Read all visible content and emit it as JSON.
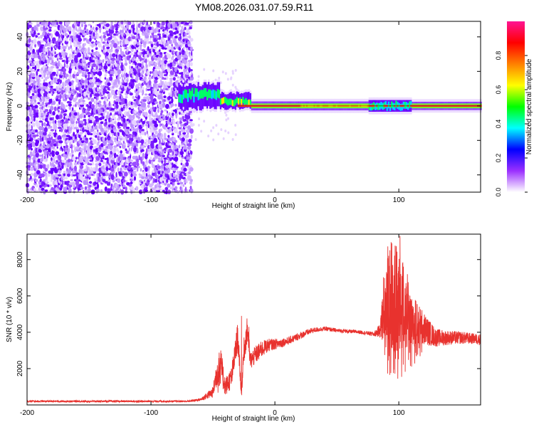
{
  "title": "YM08.2026.031.07.59.R11",
  "chart_data": [
    {
      "type": "heatmap",
      "xlabel": "Height of straight line (km)",
      "ylabel": "Frequency (Hz)",
      "xlim": [
        -200,
        166
      ],
      "ylim": [
        -50,
        49
      ],
      "xticks": [
        -200,
        -100,
        0,
        100
      ],
      "yticks": [
        -40,
        -20,
        0,
        20,
        40
      ],
      "noise_region_km": [
        -200,
        -67
      ],
      "signal_center_freq_hz": 0,
      "colorbar": {
        "label": "Normalized spectral amplitude",
        "range": [
          0.0,
          1.0
        ],
        "ticks": [
          "0.0",
          "0.2",
          "0.4",
          "0.6",
          "0.8"
        ],
        "colors": [
          "#ffffff",
          "#9b30ff",
          "#0000ff",
          "#00ffff",
          "#00ff00",
          "#ffff00",
          "#ff8000",
          "#ff0000",
          "#ff1493"
        ]
      }
    },
    {
      "type": "line",
      "xlabel": "Height of straight line (km)",
      "ylabel": "SNR (10 * v/v)",
      "xlim": [
        -200,
        166
      ],
      "ylim": [
        0,
        9400
      ],
      "xticks": [
        -200,
        -100,
        0,
        100
      ],
      "yticks": [
        2000,
        4000,
        6000,
        8000
      ],
      "color": "#e8322e",
      "envelope": {
        "x": [
          -200,
          -70,
          -60,
          -50,
          -45,
          -40,
          -35,
          -30,
          -27,
          -25,
          -22,
          -20,
          -15,
          -10,
          -5,
          0,
          10,
          20,
          30,
          40,
          50,
          60,
          70,
          80,
          85,
          88,
          92,
          96,
          100,
          104,
          108,
          112,
          120,
          130,
          140,
          150,
          160,
          166
        ],
        "y": [
          200,
          200,
          300,
          700,
          2500,
          1000,
          1500,
          3800,
          600,
          3000,
          4200,
          2400,
          2800,
          3100,
          3300,
          3350,
          3500,
          3800,
          4100,
          4200,
          4100,
          4050,
          4000,
          3900,
          4100,
          5500,
          6300,
          5800,
          5700,
          5500,
          5000,
          4600,
          4200,
          3700,
          3700,
          3700,
          3650,
          3600
        ],
        "amplitude": [
          50,
          50,
          80,
          300,
          1200,
          500,
          600,
          800,
          300,
          700,
          800,
          500,
          500,
          450,
          350,
          300,
          220,
          200,
          150,
          120,
          110,
          100,
          100,
          120,
          400,
          2000,
          3000,
          3200,
          2800,
          2400,
          2000,
          1500,
          900,
          500,
          400,
          350,
          300,
          300
        ]
      },
      "peaks": [
        {
          "x": -27,
          "y": 4900
        },
        {
          "x": -21,
          "y": 4300
        },
        {
          "x": 95,
          "y": 7700
        },
        {
          "x": 101,
          "y": 9300
        },
        {
          "x": 103,
          "y": 7800
        }
      ]
    }
  ]
}
